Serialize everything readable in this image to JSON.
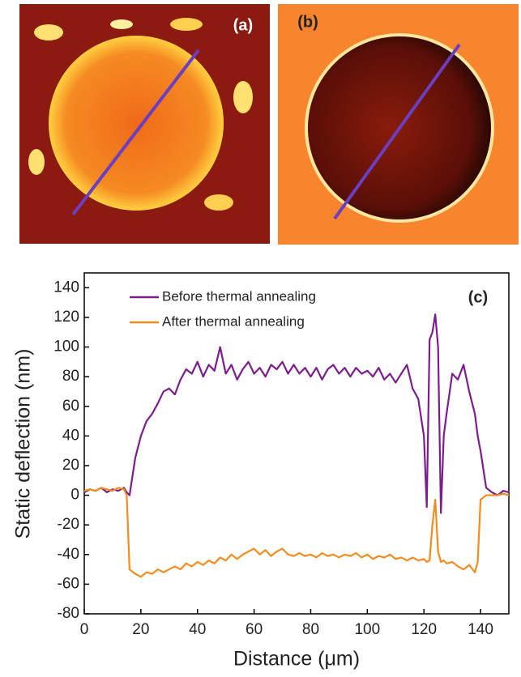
{
  "panels": {
    "a": "(a)",
    "b": "(b)"
  },
  "chart_data": {
    "type": "line",
    "annotation": "(c)",
    "x_label": "Distance (μm)",
    "y_label": "Static deflection (nm)",
    "xlim": [
      0,
      150
    ],
    "ylim": [
      -80,
      150
    ],
    "xticks": [
      0,
      20,
      40,
      60,
      80,
      100,
      120,
      140
    ],
    "yticks": [
      -80,
      -60,
      -40,
      -20,
      0,
      20,
      40,
      60,
      80,
      100,
      120,
      140
    ],
    "legend": "upper left",
    "x": [
      0,
      2,
      4,
      6,
      8,
      10,
      12,
      14,
      15,
      16,
      18,
      20,
      22,
      24,
      26,
      28,
      30,
      32,
      34,
      36,
      38,
      40,
      42,
      44,
      46,
      48,
      50,
      52,
      54,
      56,
      58,
      60,
      62,
      64,
      66,
      68,
      70,
      72,
      74,
      76,
      78,
      80,
      82,
      84,
      86,
      88,
      90,
      92,
      94,
      96,
      98,
      100,
      102,
      104,
      106,
      108,
      110,
      112,
      114,
      116,
      118,
      120,
      121,
      122,
      123,
      124,
      125,
      126,
      127,
      128,
      130,
      132,
      134,
      136,
      138,
      139,
      140,
      142,
      144,
      146,
      148,
      150
    ],
    "series": [
      {
        "name": "Before thermal annealing",
        "color": "#7b1e8c",
        "values": [
          2,
          4,
          3,
          5,
          2,
          4,
          3,
          5,
          2,
          0,
          25,
          40,
          50,
          55,
          62,
          70,
          72,
          68,
          78,
          85,
          82,
          90,
          80,
          88,
          84,
          100,
          82,
          88,
          78,
          85,
          90,
          82,
          86,
          80,
          88,
          85,
          90,
          82,
          88,
          82,
          86,
          80,
          86,
          78,
          85,
          88,
          82,
          86,
          80,
          86,
          82,
          84,
          80,
          86,
          78,
          82,
          76,
          82,
          88,
          72,
          65,
          40,
          -8,
          105,
          110,
          122,
          100,
          -12,
          40,
          55,
          82,
          78,
          88,
          70,
          55,
          40,
          30,
          5,
          2,
          0,
          3,
          2
        ]
      },
      {
        "name": "After thermal annealing",
        "color": "#f28c1e",
        "values": [
          3,
          4,
          3,
          5,
          4,
          3,
          5,
          4,
          0,
          -50,
          -53,
          -55,
          -52,
          -53,
          -50,
          -52,
          -50,
          -48,
          -50,
          -46,
          -48,
          -45,
          -47,
          -44,
          -46,
          -42,
          -44,
          -40,
          -43,
          -40,
          -38,
          -36,
          -40,
          -37,
          -41,
          -38,
          -36,
          -40,
          -41,
          -39,
          -41,
          -40,
          -42,
          -39,
          -41,
          -40,
          -42,
          -40,
          -41,
          -39,
          -42,
          -40,
          -43,
          -41,
          -42,
          -40,
          -43,
          -42,
          -44,
          -42,
          -44,
          -43,
          -45,
          -44,
          -20,
          -3,
          -38,
          -45,
          -44,
          -46,
          -45,
          -48,
          -50,
          -47,
          -52,
          -45,
          -3,
          0,
          0,
          0,
          1,
          0
        ]
      }
    ]
  }
}
